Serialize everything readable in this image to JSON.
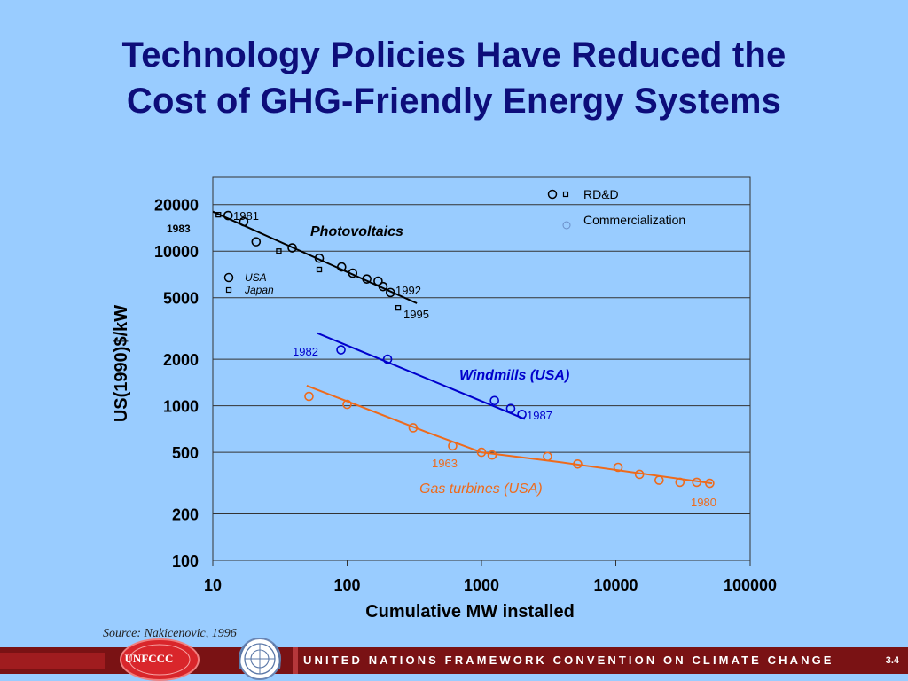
{
  "title": {
    "line1": "Technology Policies Have Reduced the",
    "line2": "Cost of GHG-Friendly Energy Systems"
  },
  "source": "Source: Nakicenovic, 1996",
  "footer": {
    "band_text": "UNITED NATIONS FRAMEWORK CONVENTION ON CLIMATE CHANGE",
    "page_number": "3.4",
    "logo_text": "UNFCCC"
  },
  "colors": {
    "background": "#99ccff",
    "title": "#0d0d7a",
    "photovoltaics": "#000000",
    "windmills": "#0000cc",
    "gas_turbines": "#ee6a1b",
    "footer": "#7a1214"
  },
  "icons": [
    "unfccc-logo",
    "un-emblem-icon"
  ],
  "chart_data": {
    "type": "scatter",
    "xscale": "log",
    "yscale": "log",
    "xlabel": "Cumulative MW installed",
    "ylabel": "US(1990)$/kW",
    "xlim": [
      10,
      100000
    ],
    "ylim": [
      100,
      30000
    ],
    "xticks": [
      10,
      100,
      1000,
      10000,
      100000
    ],
    "xtick_labels": [
      "10",
      "100",
      "1000",
      "10000",
      "100000"
    ],
    "yticks": [
      100,
      200,
      500,
      1000,
      2000,
      5000,
      10000,
      20000
    ],
    "ytick_labels": [
      "100",
      "200",
      "500",
      "1000",
      "2000",
      "5000",
      "10000",
      "20000"
    ],
    "grid": "horizontal",
    "legend": {
      "placement": "top-right",
      "entries": [
        "RD&D",
        "Commercialization"
      ]
    },
    "series": [
      {
        "name": "Photovoltaics",
        "color": "#000000",
        "marker": "circle",
        "label": "Photovoltaics",
        "points": [
          [
            13,
            17000
          ],
          [
            17,
            15500
          ],
          [
            21,
            11500
          ],
          [
            39,
            10500
          ],
          [
            62,
            9000
          ],
          [
            91,
            7900
          ],
          [
            110,
            7200
          ],
          [
            140,
            6600
          ],
          [
            170,
            6400
          ],
          [
            185,
            5900
          ],
          [
            210,
            5400
          ]
        ],
        "fit": [
          [
            10,
            18000
          ],
          [
            330,
            4600
          ]
        ]
      },
      {
        "name": "Photovoltaics (Japan)",
        "color": "#000000",
        "marker": "square",
        "points": [
          [
            11,
            17200
          ],
          [
            31,
            10000
          ],
          [
            62,
            7600
          ],
          [
            240,
            4300
          ]
        ]
      },
      {
        "name": "Windmills (USA)",
        "color": "#0000cc",
        "marker": "circle",
        "label": "Windmills (USA)",
        "points": [
          [
            90,
            2300
          ],
          [
            200,
            2000
          ],
          [
            1250,
            1080
          ],
          [
            1650,
            960
          ],
          [
            2000,
            880
          ]
        ],
        "fit": [
          [
            60,
            2950
          ],
          [
            2100,
            820
          ]
        ]
      },
      {
        "name": "Gas turbines (USA)",
        "color": "#ee6a1b",
        "marker": "circle",
        "label": "Gas turbines (USA)",
        "points": [
          [
            52,
            1150
          ],
          [
            100,
            1020
          ],
          [
            310,
            720
          ],
          [
            610,
            550
          ],
          [
            1000,
            500
          ],
          [
            1200,
            480
          ],
          [
            3100,
            470
          ],
          [
            5200,
            420
          ],
          [
            10400,
            400
          ],
          [
            15000,
            360
          ],
          [
            21000,
            330
          ],
          [
            30000,
            320
          ],
          [
            40000,
            320
          ],
          [
            50000,
            315
          ]
        ],
        "fit": [
          [
            50,
            1350
          ],
          [
            400,
            670
          ],
          [
            1000,
            500
          ],
          [
            4000,
            430
          ],
          [
            52000,
            315
          ]
        ]
      }
    ],
    "annotations": [
      {
        "text": "1981",
        "color": "#000000"
      },
      {
        "text": "1983",
        "color": "#000000"
      },
      {
        "text": "1992",
        "color": "#000000"
      },
      {
        "text": "1995",
        "color": "#000000"
      },
      {
        "text": "1982",
        "color": "#0000cc"
      },
      {
        "text": "1987",
        "color": "#0000cc"
      },
      {
        "text": "1963",
        "color": "#ee6a1b"
      },
      {
        "text": "1980",
        "color": "#ee6a1b"
      },
      {
        "text": "USA",
        "color": "#000000"
      },
      {
        "text": "Japan",
        "color": "#000000"
      }
    ]
  }
}
